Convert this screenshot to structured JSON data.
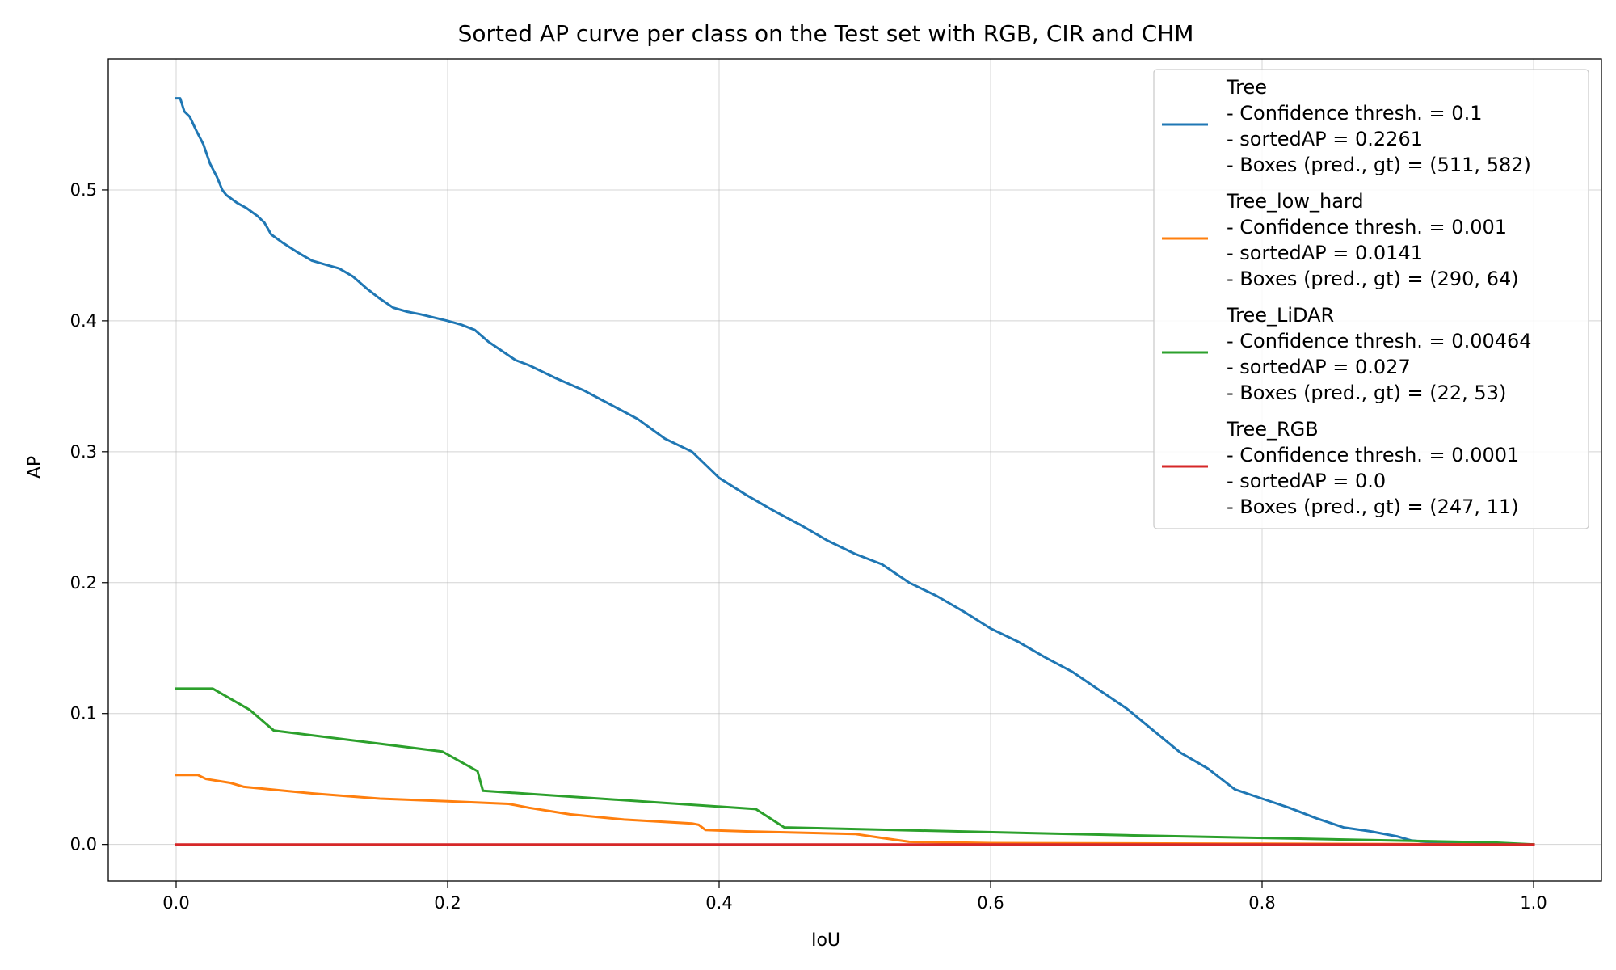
{
  "chart_data": {
    "type": "line",
    "title": "Sorted AP curve per class on the Test set with RGB, CIR and CHM",
    "xlabel": "IoU",
    "ylabel": "AP",
    "xlim": [
      -0.05,
      1.05
    ],
    "ylim": [
      -0.028,
      0.6
    ],
    "xticks": [
      "0.0",
      "0.2",
      "0.4",
      "0.6",
      "0.8",
      "1.0"
    ],
    "yticks": [
      "0.0",
      "0.1",
      "0.2",
      "0.3",
      "0.4",
      "0.5"
    ],
    "grid": true,
    "legend_position": "top-right",
    "series": [
      {
        "name": "Tree",
        "legend_lines": [
          "Tree",
          "- Confidence thresh. = 0.1",
          "- sortedAP = 0.2261",
          "- Boxes (pred., gt) = (511, 582)"
        ],
        "color": "#1f77b4",
        "x": [
          0.0,
          0.003,
          0.006,
          0.01,
          0.015,
          0.02,
          0.025,
          0.03,
          0.034,
          0.037,
          0.045,
          0.052,
          0.06,
          0.065,
          0.07,
          0.078,
          0.09,
          0.1,
          0.11,
          0.12,
          0.13,
          0.14,
          0.15,
          0.16,
          0.17,
          0.18,
          0.2,
          0.21,
          0.22,
          0.23,
          0.24,
          0.25,
          0.26,
          0.28,
          0.3,
          0.32,
          0.34,
          0.36,
          0.38,
          0.4,
          0.42,
          0.44,
          0.46,
          0.48,
          0.5,
          0.52,
          0.54,
          0.56,
          0.58,
          0.6,
          0.62,
          0.64,
          0.66,
          0.68,
          0.7,
          0.72,
          0.74,
          0.76,
          0.78,
          0.8,
          0.82,
          0.84,
          0.86,
          0.88,
          0.9,
          0.91,
          0.92,
          0.95,
          0.97,
          1.0
        ],
        "y": [
          0.57,
          0.57,
          0.56,
          0.556,
          0.545,
          0.535,
          0.52,
          0.51,
          0.5,
          0.496,
          0.49,
          0.486,
          0.48,
          0.475,
          0.466,
          0.46,
          0.452,
          0.446,
          0.443,
          0.44,
          0.434,
          0.425,
          0.417,
          0.41,
          0.407,
          0.405,
          0.4,
          0.397,
          0.393,
          0.384,
          0.377,
          0.37,
          0.366,
          0.356,
          0.347,
          0.336,
          0.325,
          0.31,
          0.3,
          0.28,
          0.267,
          0.255,
          0.244,
          0.232,
          0.222,
          0.214,
          0.2,
          0.19,
          0.178,
          0.165,
          0.155,
          0.143,
          0.132,
          0.118,
          0.104,
          0.087,
          0.07,
          0.058,
          0.042,
          0.035,
          0.028,
          0.02,
          0.013,
          0.01,
          0.006,
          0.003,
          0.002,
          0.001,
          0.0005,
          0.0
        ],
        "dash": ""
      },
      {
        "name": "Tree_low_hard",
        "legend_lines": [
          "Tree_low_hard",
          "- Confidence thresh. = 0.001",
          "- sortedAP = 0.0141",
          "- Boxes (pred., gt) = (290, 64)"
        ],
        "color": "#ff7f0e",
        "x": [
          0.0,
          0.016,
          0.022,
          0.04,
          0.05,
          0.1,
          0.15,
          0.2,
          0.245,
          0.26,
          0.29,
          0.33,
          0.38,
          0.385,
          0.39,
          0.42,
          0.5,
          0.52,
          0.54,
          0.6,
          0.8,
          1.0
        ],
        "y": [
          0.053,
          0.053,
          0.05,
          0.047,
          0.044,
          0.039,
          0.035,
          0.033,
          0.031,
          0.028,
          0.023,
          0.019,
          0.016,
          0.015,
          0.011,
          0.01,
          0.008,
          0.005,
          0.002,
          0.001,
          0.0005,
          0.0
        ],
        "dash": ""
      },
      {
        "name": "Tree_LiDAR",
        "legend_lines": [
          "Tree_LiDAR",
          "- Confidence thresh. = 0.00464",
          "- sortedAP = 0.027",
          "- Boxes (pred., gt) = (22, 53)"
        ],
        "color": "#2ca02c",
        "x": [
          0.0,
          0.027,
          0.054,
          0.072,
          0.196,
          0.222,
          0.226,
          0.427,
          0.448,
          0.7,
          0.97,
          1.0
        ],
        "y": [
          0.119,
          0.119,
          0.103,
          0.087,
          0.071,
          0.056,
          0.041,
          0.027,
          0.013,
          0.007,
          0.0015,
          0.0
        ],
        "dash": ""
      },
      {
        "name": "Tree_RGB",
        "legend_lines": [
          "Tree_RGB",
          "- Confidence thresh. = 0.0001",
          "- sortedAP = 0.0",
          "- Boxes (pred., gt) = (247, 11)"
        ],
        "color": "#d62728",
        "x": [
          0.0,
          1.0
        ],
        "y": [
          0.0,
          0.0
        ],
        "dash": ""
      }
    ]
  }
}
